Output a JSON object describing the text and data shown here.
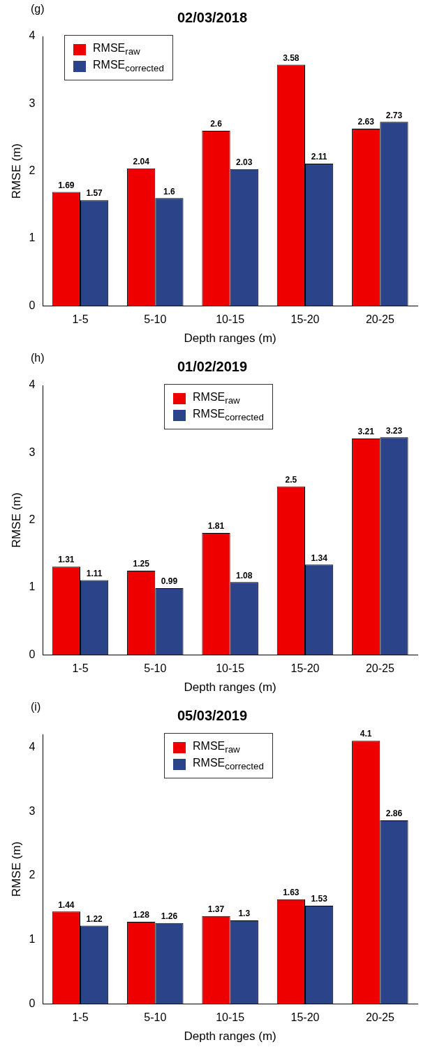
{
  "chart_data": [
    {
      "type": "bar",
      "title": "02/03/2018",
      "xlabel": "Depth ranges (m)",
      "ylabel": "RMSE (m)",
      "annotations": [
        "(g)"
      ],
      "categories": [
        "1-5",
        "5-10",
        "10-15",
        "15-20",
        "20-25"
      ],
      "series": [
        {
          "name": "RMSE$_{raw}$",
          "color": "#ee0000",
          "values": [
            1.69,
            2.04,
            2.6,
            3.58,
            2.63
          ]
        },
        {
          "name": "RMSE$_{corrected}$",
          "color": "#2a4389",
          "values": [
            1.57,
            1.6,
            2.03,
            2.11,
            2.73
          ]
        }
      ],
      "ylim": [
        0,
        4
      ],
      "yticks": [
        0,
        1,
        2,
        3,
        4
      ],
      "data_labels": true,
      "legend": "top left"
    },
    {
      "type": "bar",
      "title": "01/02/2019",
      "xlabel": "Depth ranges (m)",
      "ylabel": "RMSE (m)",
      "annotations": [
        "(h)"
      ],
      "categories": [
        "1-5",
        "5-10",
        "10-15",
        "15-20",
        "20-25"
      ],
      "series": [
        {
          "name": "RMSE$_{raw}$",
          "color": "#ee0000",
          "values": [
            1.31,
            1.25,
            1.81,
            2.5,
            3.21
          ]
        },
        {
          "name": "RMSE$_{corrected}$",
          "color": "#2a4389",
          "values": [
            1.11,
            0.99,
            1.08,
            1.34,
            3.23
          ]
        }
      ],
      "ylim": [
        0,
        4
      ],
      "yticks": [
        0,
        1,
        2,
        3,
        4
      ],
      "data_labels": true,
      "legend": "top"
    },
    {
      "type": "bar",
      "title": "05/03/2019",
      "xlabel": "Depth ranges (m)",
      "ylabel": "RMSE (m)",
      "annotations": [
        "(i)"
      ],
      "categories": [
        "1-5",
        "5-10",
        "10-15",
        "15-20",
        "20-25"
      ],
      "series": [
        {
          "name": "RMSE$_{raw}$",
          "color": "#ee0000",
          "values": [
            1.44,
            1.28,
            1.37,
            1.63,
            4.1
          ]
        },
        {
          "name": "RMSE$_{corrected}$",
          "color": "#2a4389",
          "values": [
            1.22,
            1.26,
            1.3,
            1.53,
            2.86
          ]
        }
      ],
      "ylim": [
        0,
        4.2
      ],
      "yticks": [
        0,
        1,
        2,
        3,
        4
      ],
      "data_labels": true,
      "legend": "top"
    }
  ]
}
